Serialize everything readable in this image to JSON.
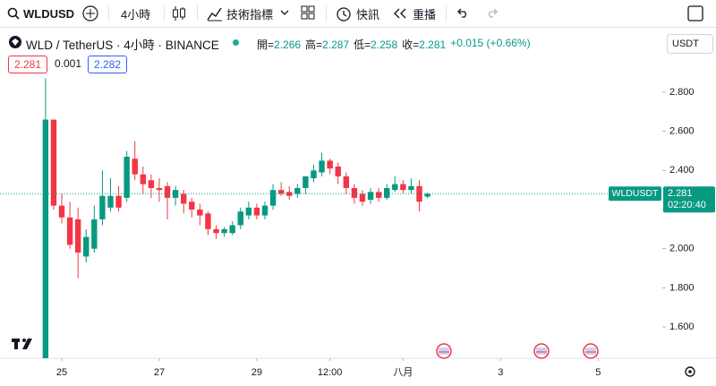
{
  "toolbar": {
    "symbol": "WLDUSD",
    "interval": "4小時",
    "indicators": "技術指標",
    "alert": "快訊",
    "replay": "重播",
    "currency": "USDT",
    "bid": "2.281",
    "spread": "0.001",
    "ask": "2.282"
  },
  "chart_data": {
    "type": "candlestick",
    "title": "WLD / TetherUS · 4小時 · BINANCE",
    "ohlc_legend": [
      {
        "label": "開=",
        "value": "2.266"
      },
      {
        "label": "高=",
        "value": "2.287"
      },
      {
        "label": "低=",
        "value": "2.258"
      },
      {
        "label": "收=",
        "value": "2.281"
      }
    ],
    "change": "+0.015 (+0.66%)",
    "up_color": "#089981",
    "down_color": "#f23645",
    "x": [
      0,
      1,
      2,
      3,
      4,
      5,
      6,
      7,
      8,
      9,
      10,
      11,
      12,
      13,
      14,
      15,
      16,
      17,
      18,
      19,
      20,
      21,
      22,
      23,
      24,
      25,
      26,
      27,
      28,
      29,
      30,
      31,
      32,
      33,
      34,
      35,
      36,
      37,
      38,
      39,
      40,
      41,
      42,
      43,
      44,
      45,
      46,
      47
    ],
    "open": [
      1.43,
      2.66,
      2.22,
      2.16,
      2.15,
      1.96,
      2.0,
      2.15,
      2.21,
      2.27,
      2.26,
      2.46,
      2.38,
      2.35,
      2.31,
      2.32,
      2.26,
      2.28,
      2.24,
      2.2,
      2.18,
      2.1,
      2.08,
      2.08,
      2.12,
      2.17,
      2.21,
      2.17,
      2.22,
      2.3,
      2.29,
      2.28,
      2.31,
      2.36,
      2.39,
      2.45,
      2.42,
      2.37,
      2.31,
      2.28,
      2.25,
      2.29,
      2.26,
      2.3,
      2.33,
      2.3,
      2.32,
      2.266
    ],
    "high": [
      2.87,
      2.66,
      2.28,
      2.24,
      2.21,
      2.1,
      2.22,
      2.4,
      2.36,
      2.32,
      2.5,
      2.55,
      2.42,
      2.38,
      2.36,
      2.34,
      2.32,
      2.3,
      2.26,
      2.23,
      2.19,
      2.12,
      2.11,
      2.14,
      2.21,
      2.24,
      2.23,
      2.24,
      2.33,
      2.34,
      2.32,
      2.33,
      2.37,
      2.43,
      2.49,
      2.46,
      2.44,
      2.39,
      2.33,
      2.3,
      2.31,
      2.31,
      2.33,
      2.37,
      2.35,
      2.36,
      2.35,
      2.287
    ],
    "low": [
      1.42,
      2.2,
      2.13,
      2.0,
      1.85,
      1.93,
      1.98,
      2.12,
      2.19,
      2.19,
      2.24,
      2.35,
      2.28,
      2.26,
      2.24,
      2.15,
      2.22,
      2.18,
      2.16,
      2.12,
      2.07,
      2.05,
      2.06,
      2.07,
      2.1,
      2.15,
      2.15,
      2.15,
      2.2,
      2.27,
      2.25,
      2.26,
      2.28,
      2.34,
      2.37,
      2.38,
      2.33,
      2.28,
      2.23,
      2.22,
      2.23,
      2.24,
      2.25,
      2.29,
      2.28,
      2.28,
      2.19,
      2.258
    ],
    "close": [
      2.66,
      2.22,
      2.16,
      2.02,
      1.98,
      2.06,
      2.15,
      2.27,
      2.27,
      2.21,
      2.47,
      2.38,
      2.33,
      2.31,
      2.3,
      2.26,
      2.3,
      2.23,
      2.2,
      2.17,
      2.1,
      2.08,
      2.1,
      2.12,
      2.19,
      2.21,
      2.17,
      2.22,
      2.3,
      2.28,
      2.27,
      2.31,
      2.37,
      2.4,
      2.45,
      2.41,
      2.37,
      2.31,
      2.26,
      2.24,
      2.29,
      2.26,
      2.31,
      2.33,
      2.3,
      2.32,
      2.24,
      2.281
    ],
    "last_price": {
      "symbol": "WLDUSDT",
      "value": 2.281,
      "countdown": "02:20:40"
    },
    "xlim": [
      -5.6,
      75.9
    ],
    "xticks": [
      {
        "value": 2,
        "label": "25"
      },
      {
        "value": 14,
        "label": "27"
      },
      {
        "value": 26,
        "label": "29"
      },
      {
        "value": 35,
        "label": "12:00"
      },
      {
        "value": 44,
        "label": "八月"
      },
      {
        "value": 56,
        "label": "3"
      },
      {
        "value": 68,
        "label": "5"
      }
    ],
    "ylim": [
      1.44,
      3.134
    ],
    "yticks": [
      {
        "value": 1.6,
        "label": "1.600"
      },
      {
        "value": 1.8,
        "label": "1.800"
      },
      {
        "value": 2.0,
        "label": "2.000"
      },
      {
        "value": 2.2,
        "label": "2.200"
      },
      {
        "value": 2.4,
        "label": "2.400"
      },
      {
        "value": 2.6,
        "label": "2.600"
      },
      {
        "value": 2.8,
        "label": "2.800"
      }
    ],
    "grid": false
  }
}
